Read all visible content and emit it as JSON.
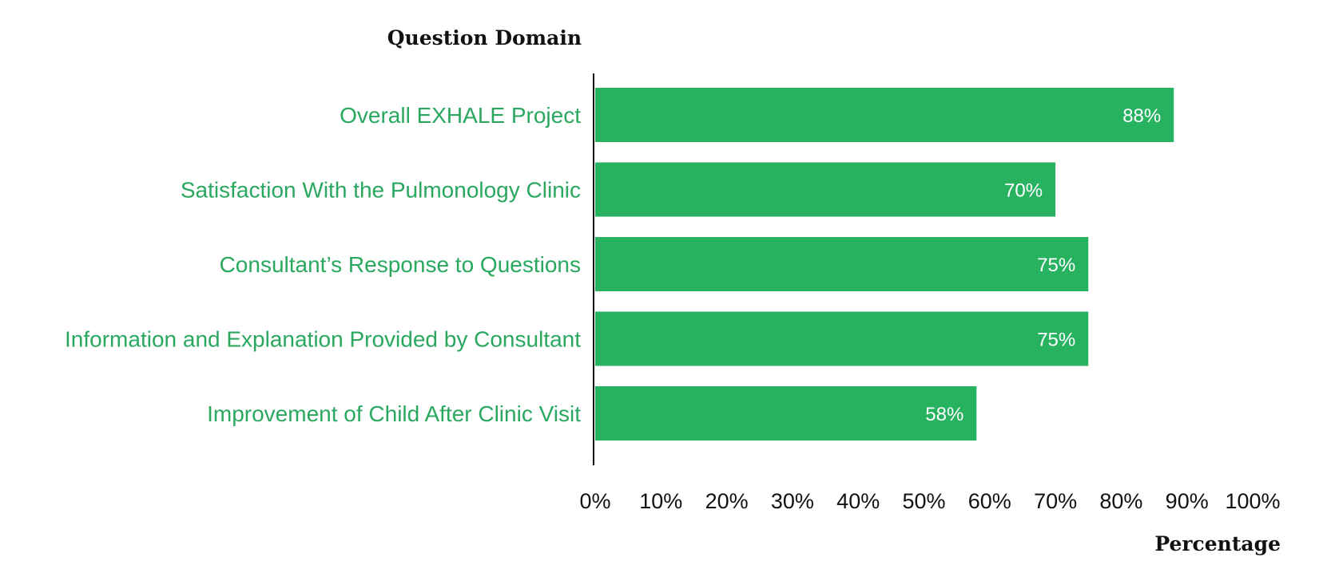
{
  "chart_data": {
    "type": "bar",
    "orientation": "horizontal",
    "title": "",
    "ylabel": "Question Domain",
    "xlabel": "Percentage",
    "categories": [
      "Overall EXHALE Project",
      "Satisfaction With the Pulmonology Clinic",
      "Consultant’s Response to Questions",
      "Information and Explanation Provided by Consultant",
      "Improvement of Child After Clinic Visit"
    ],
    "values": [
      88,
      70,
      75,
      75,
      58
    ],
    "data_labels": [
      "88%",
      "70%",
      "75%",
      "75%",
      "58%"
    ],
    "xlim": [
      0,
      100
    ],
    "x_ticks": [
      0,
      10,
      20,
      30,
      40,
      50,
      60,
      70,
      80,
      90,
      100
    ],
    "x_tick_labels": [
      "0%",
      "10%",
      "20%",
      "30%",
      "40%",
      "50%",
      "60%",
      "70%",
      "80%",
      "90%",
      "100%"
    ],
    "grid": false,
    "legend": "none",
    "colors": {
      "bar": "#27b260",
      "category_text": "#2aa860",
      "axis": "#111111",
      "data_label": "#ffffff"
    }
  }
}
